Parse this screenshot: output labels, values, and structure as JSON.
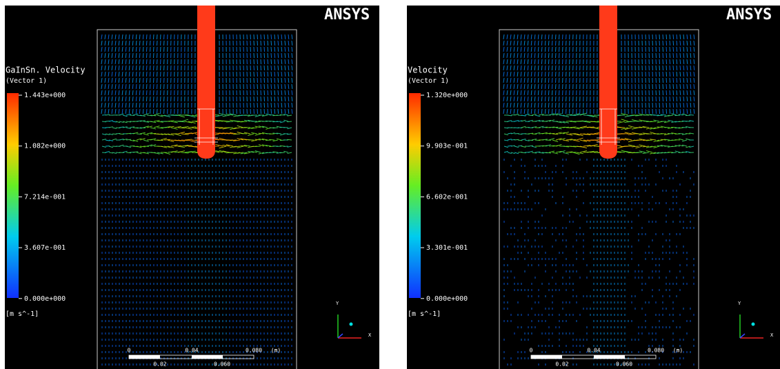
{
  "panels": [
    {
      "logo": "ANSYS",
      "legend": {
        "title": "GaInSn. Velocity",
        "subtitle": "(Vector 1)",
        "ticks": [
          "1.443e+000",
          "1.082e+000",
          "7.214e-001",
          "3.607e-001",
          "0.000e+000"
        ],
        "unit": "[m s^-1]"
      },
      "scale": {
        "top": [
          "0",
          "0.04",
          "0.080",
          "(m)"
        ],
        "bottom": [
          "0.02",
          "0.060"
        ]
      },
      "axes": [
        "Y",
        "X"
      ]
    },
    {
      "logo": "ANSYS",
      "legend": {
        "title": "Velocity",
        "subtitle": "(Vector 1)",
        "ticks": [
          "1.320e+000",
          "9.903e-001",
          "6.602e-001",
          "3.301e-001",
          "0.000e+000"
        ],
        "unit": "[m s^-1]"
      },
      "scale": {
        "top": [
          "0",
          "0.04",
          "0.080",
          "(m)"
        ],
        "bottom": [
          "0.02",
          "0.060"
        ]
      },
      "axes": [
        "Y",
        "X"
      ]
    }
  ]
}
